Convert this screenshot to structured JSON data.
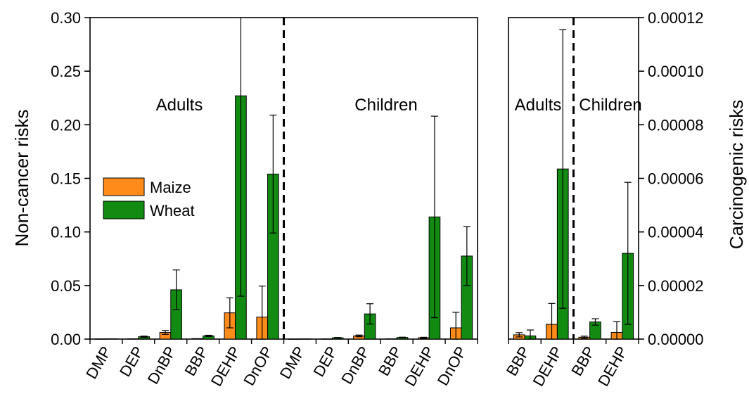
{
  "chart_data": [
    {
      "type": "bar",
      "panel": "left",
      "ylabel": "Non-cancer risks",
      "ylim": [
        0,
        0.3
      ],
      "yticks": [
        "0.00",
        "0.05",
        "0.10",
        "0.15",
        "0.20",
        "0.25",
        "0.30"
      ],
      "ytick_values": [
        0,
        0.05,
        0.1,
        0.15,
        0.2,
        0.25,
        0.3
      ],
      "groups": [
        {
          "label": "Adults",
          "categories": [
            "DMP",
            "DEP",
            "DnBP",
            "BBP",
            "DEHP",
            "DnOP"
          ]
        },
        {
          "label": "Children",
          "categories": [
            "DMP",
            "DEP",
            "DnBP",
            "BBP",
            "DEHP",
            "DnOP"
          ]
        }
      ],
      "series": [
        {
          "name": "Maize",
          "color": "#ff8c1a",
          "values": [
            0.0002,
            0.0003,
            0.0062,
            0.0005,
            0.0245,
            0.0205,
            0.0001,
            0.0002,
            0.003,
            0.0003,
            0.0012,
            0.0105
          ],
          "errors": [
            0,
            0,
            0.0018,
            0,
            0.014,
            0.029,
            0,
            0,
            0.0008,
            0,
            0.0005,
            0.0145
          ]
        },
        {
          "name": "Wheat",
          "color": "#138b13",
          "values": [
            0.0003,
            0.0022,
            0.046,
            0.003,
            0.227,
            0.154,
            0.0002,
            0.0012,
            0.0235,
            0.0015,
            0.114,
            0.0775
          ],
          "errors": [
            0,
            0.0006,
            0.0185,
            0.0006,
            0.187,
            0.055,
            0,
            0.0003,
            0.0095,
            0.0003,
            0.094,
            0.0275
          ]
        }
      ],
      "legend": {
        "position": "left-middle",
        "entries": [
          "Maize",
          "Wheat"
        ]
      },
      "grid": false
    },
    {
      "type": "bar",
      "panel": "right",
      "ylabel": "Carcinogenic risks",
      "ylim": [
        0,
        0.00012
      ],
      "yticks": [
        "0.00000",
        "0.00002",
        "0.00004",
        "0.00006",
        "0.00008",
        "0.00010",
        "0.00012"
      ],
      "ytick_values": [
        0,
        2e-05,
        4e-05,
        6e-05,
        8e-05,
        0.0001,
        0.00012
      ],
      "groups": [
        {
          "label": "Adults",
          "categories": [
            "BBP",
            "DEHP"
          ]
        },
        {
          "label": "Children",
          "categories": [
            "BBP",
            "DEHP"
          ]
        }
      ],
      "series": [
        {
          "name": "Maize",
          "color": "#ff8c1a",
          "values": [
            1.6e-06,
            5.5e-06,
            7e-07,
            2.5e-06
          ],
          "errors": [
            8e-07,
            7.8e-06,
            4e-07,
            4e-06
          ]
        },
        {
          "name": "Wheat",
          "color": "#138b13",
          "values": [
            1.2e-06,
            6.35e-05,
            6.4e-06,
            3.2e-05
          ],
          "errors": [
            2.2e-06,
            5.2e-05,
            1.2e-06,
            2.65e-05
          ]
        }
      ],
      "grid": false
    }
  ]
}
